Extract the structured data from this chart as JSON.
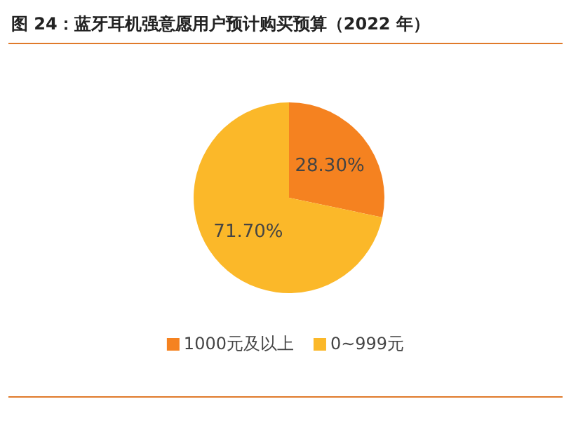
{
  "chart_data": {
    "type": "pie",
    "title": "图 24：蓝牙耳机强意愿用户预计购买预算（2022 年）",
    "categories": [
      "1000元及以上",
      "0~999元"
    ],
    "values": [
      28.3,
      71.7
    ],
    "colors": [
      "#f58220",
      "#fbb829"
    ],
    "value_labels": [
      "28.30%",
      "71.70%"
    ],
    "legend": "bottom"
  }
}
